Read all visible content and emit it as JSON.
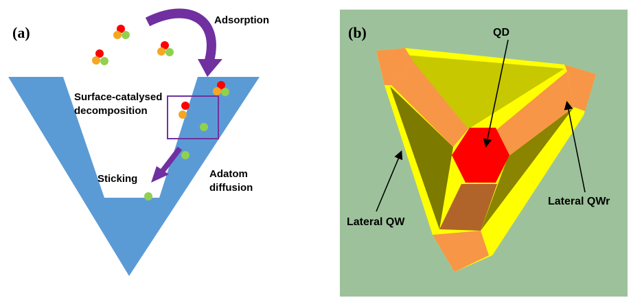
{
  "panel_a": {
    "label": "(a)",
    "texts": {
      "adsorption": "Adsorption",
      "surface_line1": "Surface-catalysed",
      "surface_line2": "decomposition",
      "sticking": "Sticking",
      "adatom_line1": "Adatom",
      "adatom_line2": "diffusion"
    },
    "colors": {
      "v_groove": "#5b9bd5",
      "arrow": "#7030a0",
      "box": "#7030a0",
      "atom_red": "#ff0000",
      "atom_orange": "#f5a623",
      "atom_green": "#92d050"
    }
  },
  "panel_b": {
    "label": "(b)",
    "texts": {
      "qd": "QD",
      "lateral_qwr": "Lateral QWr",
      "lateral_qw": "Lateral QW"
    },
    "colors": {
      "background": "#9dc29b",
      "qd": "#ff0000",
      "qwr": "#f79646",
      "facet": "#c8c800",
      "outline": "#ffff00"
    }
  }
}
